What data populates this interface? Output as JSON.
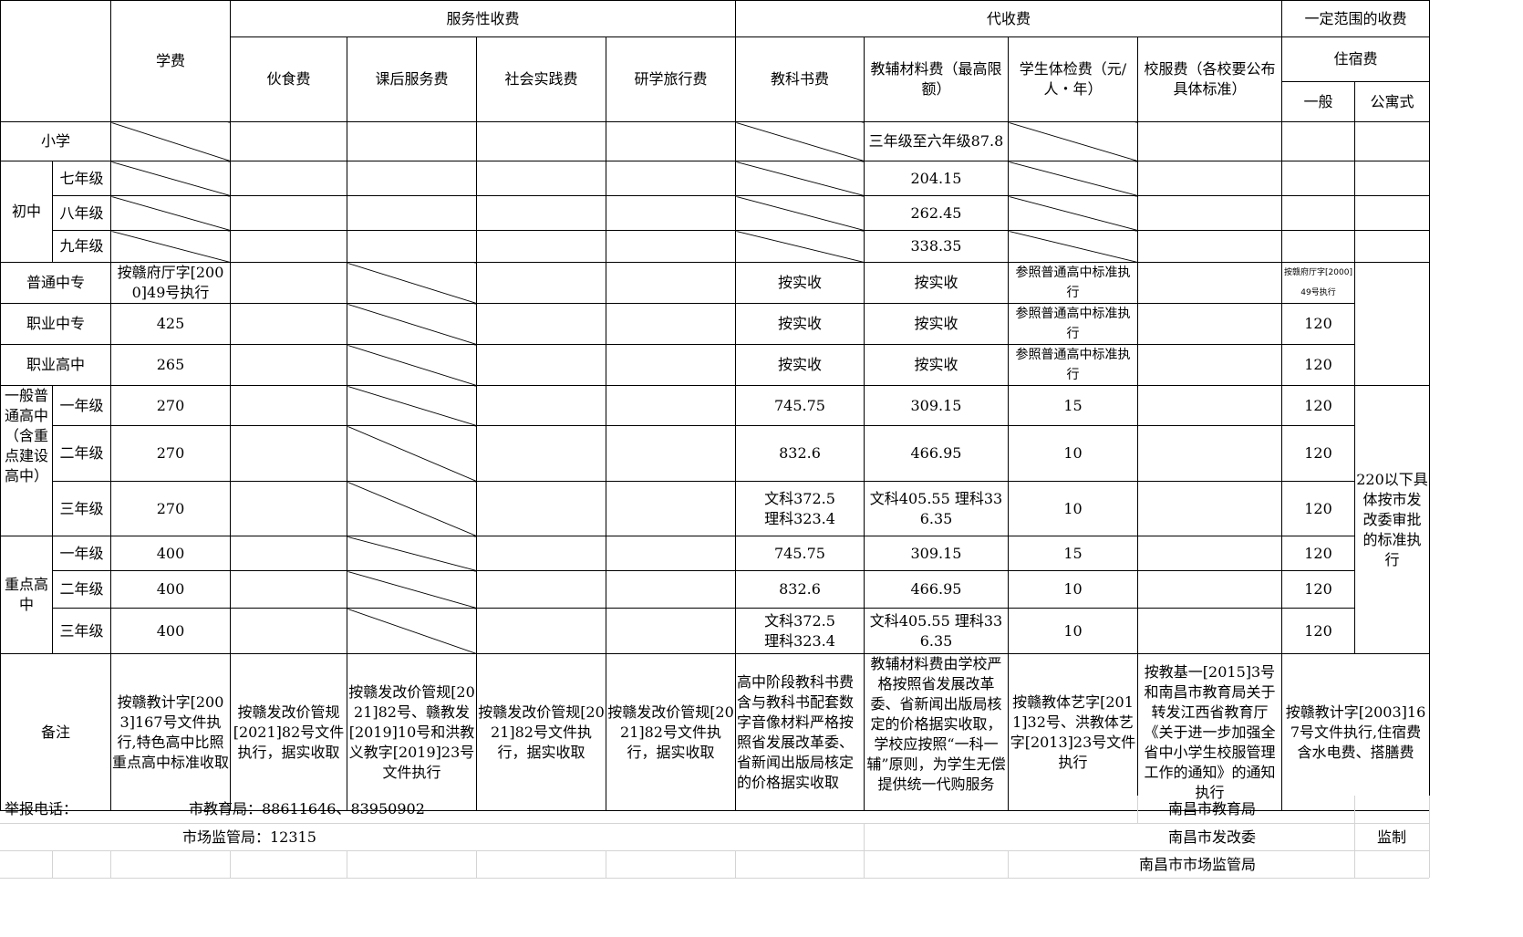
{
  "header": {
    "service_group": "服务性收费",
    "collect_group": "代收费",
    "range_group": "一定范围的收费",
    "tuition": "学费",
    "food": "伙食费",
    "after_school": "课后服务费",
    "social_practice": "社会实践费",
    "study_tour": "研学旅行费",
    "textbook": "教科书费",
    "aux_material": "教辅材料费（最高限额）",
    "health_check": "学生体检费（元/人・年）",
    "uniform": "校服费（各校要公布具体标准）",
    "lodging": "住宿费",
    "general": "一般",
    "apartment": "公寓式"
  },
  "rows": {
    "primary": {
      "label": "小学",
      "aux": "三年级至六年级87.8"
    },
    "junior": {
      "label": "初中",
      "g7": "七年级",
      "g7_aux": "204.15",
      "g8": "八年级",
      "g8_aux": "262.45",
      "g9": "九年级",
      "g9_aux": "338.35"
    },
    "secondary_tech": {
      "label": "普通中专",
      "tuition": "按赣府厅字[2000]49号执行",
      "textbook": "按实收",
      "aux": "按实收",
      "health": "参照普通高中标准执行",
      "lodging": "按赣府厅字[2000]49号执行"
    },
    "vocational_tech": {
      "label": "职业中专",
      "tuition": "425",
      "textbook": "按实收",
      "aux": "按实收",
      "health": "参照普通高中标准执行",
      "lodging": "120"
    },
    "vocational_high": {
      "label": "职业高中",
      "tuition": "265",
      "textbook": "按实收",
      "aux": "按实收",
      "health": "参照普通高中标准执行",
      "lodging": "120"
    },
    "general_high": {
      "label": "一般普通高中（含重点建设高中）",
      "grades": [
        {
          "grade": "一年级",
          "tuition": "270",
          "textbook": "745.75",
          "aux": "309.15",
          "health": "15",
          "lodging": "120"
        },
        {
          "grade": "二年级",
          "tuition": "270",
          "textbook": "832.6",
          "aux": "466.95",
          "health": "10",
          "lodging": "120"
        },
        {
          "grade": "三年级",
          "tuition": "270",
          "textbook": "文科372.5　　　理科323.4",
          "aux": "文科405.55 理科336.35",
          "health": "10",
          "lodging": "120"
        }
      ]
    },
    "key_high": {
      "label": "重点高中",
      "grades": [
        {
          "grade": "一年级",
          "tuition": "400",
          "textbook": "745.75",
          "aux": "309.15",
          "health": "15",
          "lodging": "120"
        },
        {
          "grade": "二年级",
          "tuition": "400",
          "textbook": "832.6",
          "aux": "466.95",
          "health": "10",
          "lodging": "120"
        },
        {
          "grade": "三年级",
          "tuition": "400",
          "textbook": "文科372.5　　　理科323.4",
          "aux": "文科405.55 理科336.35",
          "health": "10",
          "lodging": "120"
        }
      ]
    },
    "apartment_note": "220以下具体按市发改委审批的标准执行"
  },
  "notes": {
    "label": "备注",
    "tuition": "按赣教计字[2003]167号文件执行,特色高中比照重点高中标准收取",
    "food": "按赣发改价管规[2021]82号文件执行，据实收取",
    "after_school": "按赣发改价管规[2021]82号、赣教发[2019]10号和洪教义教字[2019]23号文件执行",
    "social": "按赣发改价管规[2021]82号文件执行，据实收取",
    "study_tour": "按赣发改价管规[2021]82号文件执行，据实收取",
    "textbook": "高中阶段教科书费含与教科书配套数字音像材料严格按照省发展改革委、省新闻出版局核定的价格据实收取",
    "aux": "教辅材料费由学校严格按照省发展改革委、省新闻出版局核定的价格据实收取，学校应按照“一科一辅”原则，为学生无偿提供统一代购服务",
    "health": "按赣教体艺字[2011]32号、洪教体艺字[2013]23号文件执行",
    "uniform": "按教基一[2015]3号和南昌市教育局关于转发江西省教育厅《关于进一步加强全省中小学生校服管理工作的通知》的通知执行",
    "lodging": "按赣教计字[2003]167号文件执行,住宿费含水电费、搭膳费"
  },
  "footer": {
    "hotline_label": "举报电话：",
    "edu_phone": "市教育局：88611646、83950902",
    "market_phone": "市场监管局：12315",
    "issuer1": "南昌市教育局",
    "issuer2": "南昌市发改委",
    "issuer3": "南昌市市场监管局",
    "supervised": "监制"
  }
}
